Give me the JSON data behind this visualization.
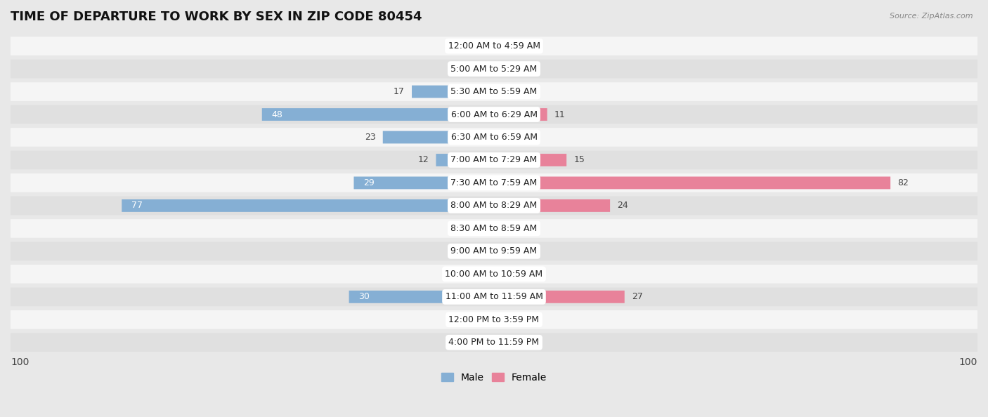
{
  "title": "TIME OF DEPARTURE TO WORK BY SEX IN ZIP CODE 80454",
  "source": "Source: ZipAtlas.com",
  "categories": [
    "12:00 AM to 4:59 AM",
    "5:00 AM to 5:29 AM",
    "5:30 AM to 5:59 AM",
    "6:00 AM to 6:29 AM",
    "6:30 AM to 6:59 AM",
    "7:00 AM to 7:29 AM",
    "7:30 AM to 7:59 AM",
    "8:00 AM to 8:29 AM",
    "8:30 AM to 8:59 AM",
    "9:00 AM to 9:59 AM",
    "10:00 AM to 10:59 AM",
    "11:00 AM to 11:59 AM",
    "12:00 PM to 3:59 PM",
    "4:00 PM to 11:59 PM"
  ],
  "male_values": [
    0,
    0,
    17,
    48,
    23,
    12,
    29,
    77,
    0,
    0,
    0,
    30,
    0,
    0
  ],
  "female_values": [
    0,
    0,
    0,
    11,
    0,
    15,
    82,
    24,
    0,
    0,
    0,
    27,
    0,
    0
  ],
  "male_color": "#85afd4",
  "female_color": "#e8829a",
  "male_color_light": "#b8d0e8",
  "female_color_light": "#f0b8c4",
  "male_label": "Male",
  "female_label": "Female",
  "xlim": 100,
  "bg_color": "#e8e8e8",
  "row_light_color": "#f5f5f5",
  "row_dark_color": "#e0e0e0",
  "title_fontsize": 13,
  "source_fontsize": 8,
  "cat_fontsize": 9,
  "val_fontsize": 9,
  "legend_fontsize": 10,
  "axis_val_fontsize": 10,
  "min_bar_stub": 5
}
